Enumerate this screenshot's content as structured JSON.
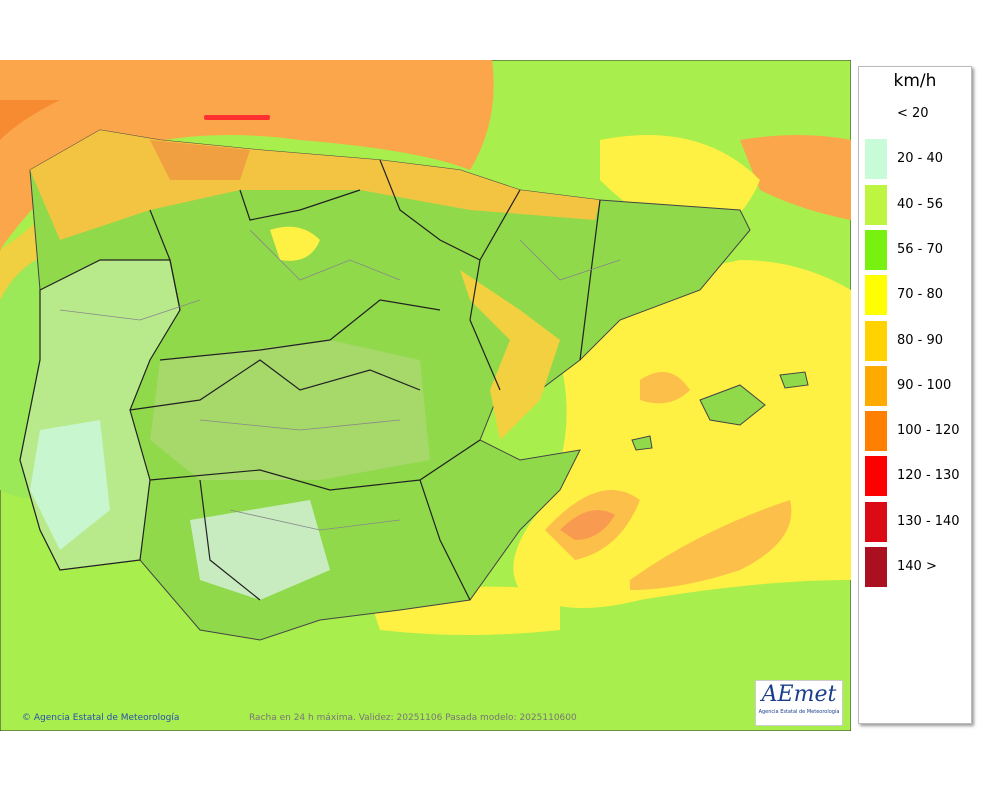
{
  "legend": {
    "title": "km/h",
    "items": [
      {
        "label": "< 20",
        "color": "#ffffff"
      },
      {
        "label": "20 - 40",
        "color": "#c8fcd8"
      },
      {
        "label": "40 - 56",
        "color": "#bef540"
      },
      {
        "label": "56 - 70",
        "color": "#78f010"
      },
      {
        "label": "70 - 80",
        "color": "#ffff00"
      },
      {
        "label": "80 - 90",
        "color": "#ffd200"
      },
      {
        "label": "90 - 100",
        "color": "#ffaa00"
      },
      {
        "label": "100 - 120",
        "color": "#ff8000"
      },
      {
        "label": "120 - 130",
        "color": "#ff0000"
      },
      {
        "label": "130 - 140",
        "color": "#dc0a14"
      },
      {
        "label": "140 >",
        "color": "#aa1020"
      }
    ]
  },
  "footer": {
    "credit": "© Agencia Estatal de Meteorología",
    "caption": "Racha en 24 h máxima. Validez: 20251106 Pasada modelo: 2025110600"
  },
  "logo": {
    "name": "AEmet",
    "subtitle": "Agencia Estatal de Meteorología"
  }
}
